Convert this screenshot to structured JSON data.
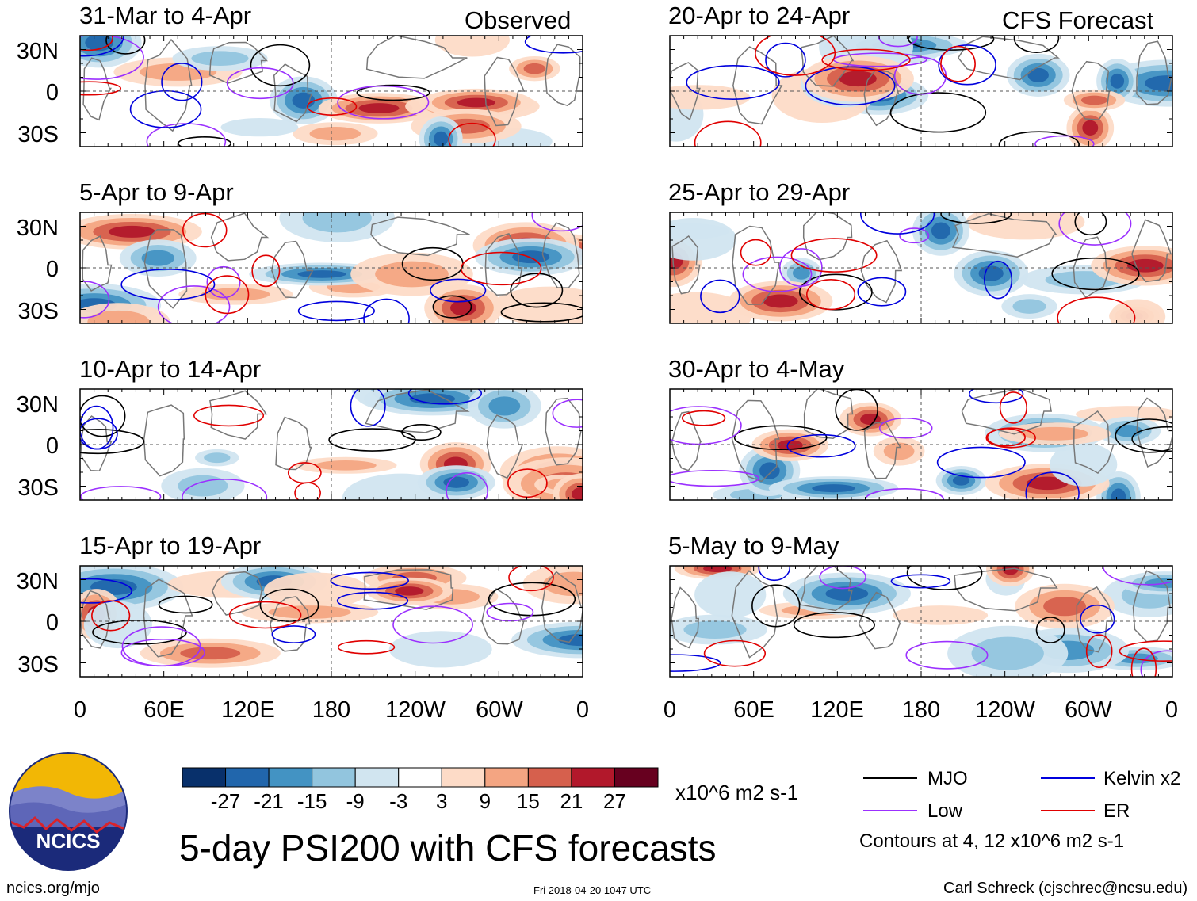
{
  "chart_data": {
    "type": "heatmap",
    "title": "5-day PSI200 with CFS forecasts",
    "variable": "PSI200",
    "units": "x10^6 m2 s-1",
    "x_tick_labels": [
      "0",
      "60E",
      "120E",
      "180",
      "120W",
      "60W",
      "0"
    ],
    "y_tick_labels": [
      "30N",
      "0",
      "30S"
    ],
    "x_range_lon": [
      0,
      360
    ],
    "y_range_lat": [
      -40,
      40
    ],
    "colorbar_levels": [
      -27,
      -21,
      -15,
      -9,
      -3,
      3,
      9,
      15,
      21,
      27
    ],
    "colorbar_colors": [
      "#08306b",
      "#2166ac",
      "#4393c3",
      "#92c5de",
      "#d1e5f0",
      "#ffffff",
      "#fddbc7",
      "#f4a582",
      "#d6604d",
      "#b2182b",
      "#67001f"
    ],
    "columns": [
      {
        "label": "Observed",
        "panels": [
          {
            "period": "31-Mar to 4-Apr",
            "seed": 11
          },
          {
            "period": "5-Apr to 9-Apr",
            "seed": 23
          },
          {
            "period": "10-Apr to 14-Apr",
            "seed": 37
          },
          {
            "period": "15-Apr to 19-Apr",
            "seed": 41
          }
        ]
      },
      {
        "label": "CFS Forecast",
        "panels": [
          {
            "period": "20-Apr to 24-Apr",
            "seed": 53
          },
          {
            "period": "25-Apr to 29-Apr",
            "seed": 67
          },
          {
            "period": "30-Apr to 4-May",
            "seed": 79
          },
          {
            "period": "5-May to 9-May",
            "seed": 83
          }
        ]
      }
    ],
    "contour_series": [
      {
        "name": "MJO",
        "color": "#000000"
      },
      {
        "name": "Low",
        "color": "#9b30ff"
      },
      {
        "name": "Kelvin x2",
        "color": "#0000dd"
      },
      {
        "name": "ER",
        "color": "#e00000"
      }
    ],
    "contour_note": "Contours at 4, 12 x10^6 m2 s-1"
  },
  "header": {
    "observed_label": "Observed",
    "forecast_label": "CFS Forecast"
  },
  "logo": {
    "text": "NCICS"
  },
  "footer": {
    "site": "ncics.org/mjo",
    "timestamp": "Fri 2018-04-20 1047 UTC",
    "credit": "Carl Schreck (cjschrec@ncsu.edu)"
  },
  "colors": {
    "grid": "#555555",
    "coast": "#777777"
  }
}
